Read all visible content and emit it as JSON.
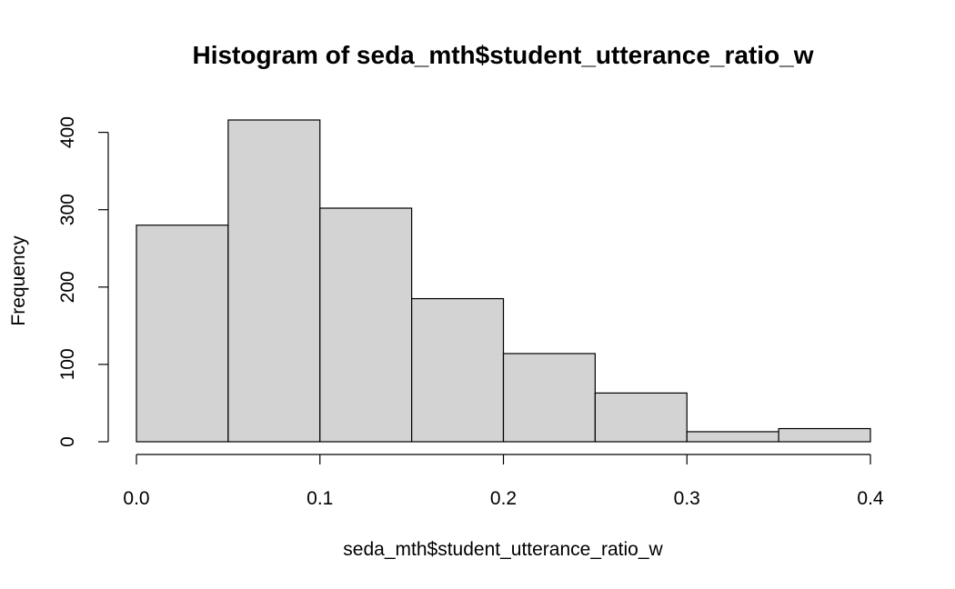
{
  "chart_data": {
    "type": "bar",
    "title": "Histogram of seda_mth$student_utterance_ratio_w",
    "xlabel": "seda_mth$student_utterance_ratio_w",
    "ylabel": "Frequency",
    "bins": [
      {
        "start": 0.0,
        "end": 0.05,
        "count": 280
      },
      {
        "start": 0.05,
        "end": 0.1,
        "count": 416
      },
      {
        "start": 0.1,
        "end": 0.15,
        "count": 302
      },
      {
        "start": 0.15,
        "end": 0.2,
        "count": 185
      },
      {
        "start": 0.2,
        "end": 0.25,
        "count": 114
      },
      {
        "start": 0.25,
        "end": 0.3,
        "count": 63
      },
      {
        "start": 0.3,
        "end": 0.35,
        "count": 13
      },
      {
        "start": 0.35,
        "end": 0.4,
        "count": 17
      }
    ],
    "xlim": [
      0.0,
      0.4
    ],
    "ylim": [
      0,
      416
    ],
    "x_ticks": [
      0.0,
      0.1,
      0.2,
      0.3,
      0.4
    ],
    "x_tick_labels": [
      "0.0",
      "0.1",
      "0.2",
      "0.3",
      "0.4"
    ],
    "y_ticks": [
      0,
      100,
      200,
      300,
      400
    ],
    "y_tick_labels": [
      "0",
      "100",
      "200",
      "300",
      "400"
    ],
    "bar_color": "#d3d3d3",
    "edge_color": "#000000",
    "grid": false,
    "legend": "none"
  }
}
